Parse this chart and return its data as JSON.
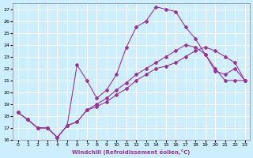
{
  "xlabel": "Windchill (Refroidissement éolien,°C)",
  "background_color": "#cceeff",
  "grid_color": "#ffffff",
  "line_color": "#993399",
  "xlim": [
    -0.5,
    23.5
  ],
  "ylim": [
    16,
    27.5
  ],
  "xticks": [
    0,
    1,
    2,
    3,
    4,
    5,
    6,
    7,
    8,
    9,
    10,
    11,
    12,
    13,
    14,
    15,
    16,
    17,
    18,
    19,
    20,
    21,
    22,
    23
  ],
  "yticks": [
    16,
    17,
    18,
    19,
    20,
    21,
    22,
    23,
    24,
    25,
    26,
    27
  ],
  "line1_x": [
    0,
    1,
    2,
    3,
    4,
    5,
    6,
    7,
    8,
    9,
    10,
    11,
    12,
    13,
    14,
    15,
    16,
    17,
    18,
    19,
    20,
    21,
    22,
    23
  ],
  "line1_y": [
    18.3,
    17.7,
    17.0,
    17.0,
    16.2,
    17.2,
    17.5,
    18.5,
    18.8,
    19.2,
    19.8,
    20.3,
    21.0,
    21.5,
    22.0,
    22.2,
    22.5,
    23.0,
    23.5,
    23.8,
    23.5,
    23.0,
    22.5,
    21.0
  ],
  "line2_x": [
    0,
    1,
    2,
    3,
    4,
    5,
    6,
    7,
    8,
    9,
    10,
    11,
    12,
    13,
    14,
    15,
    16,
    17,
    18,
    19,
    20,
    21,
    22,
    23
  ],
  "line2_y": [
    18.3,
    17.7,
    17.0,
    17.0,
    16.2,
    17.2,
    22.3,
    21.0,
    19.5,
    20.2,
    21.5,
    23.8,
    25.5,
    26.0,
    27.2,
    27.0,
    26.8,
    25.5,
    24.5,
    23.2,
    22.0,
    21.0,
    21.0,
    21.0
  ],
  "line3_x": [
    0,
    1,
    2,
    3,
    4,
    5,
    6,
    7,
    8,
    9,
    10,
    11,
    12,
    13,
    14,
    15,
    16,
    17,
    18,
    19,
    20,
    21,
    22,
    23
  ],
  "line3_y": [
    18.3,
    17.7,
    17.0,
    17.0,
    16.2,
    17.2,
    17.5,
    18.5,
    19.0,
    19.5,
    20.2,
    20.8,
    21.5,
    22.0,
    22.5,
    23.0,
    23.5,
    24.0,
    23.8,
    23.2,
    21.8,
    21.5,
    22.0,
    21.0
  ]
}
